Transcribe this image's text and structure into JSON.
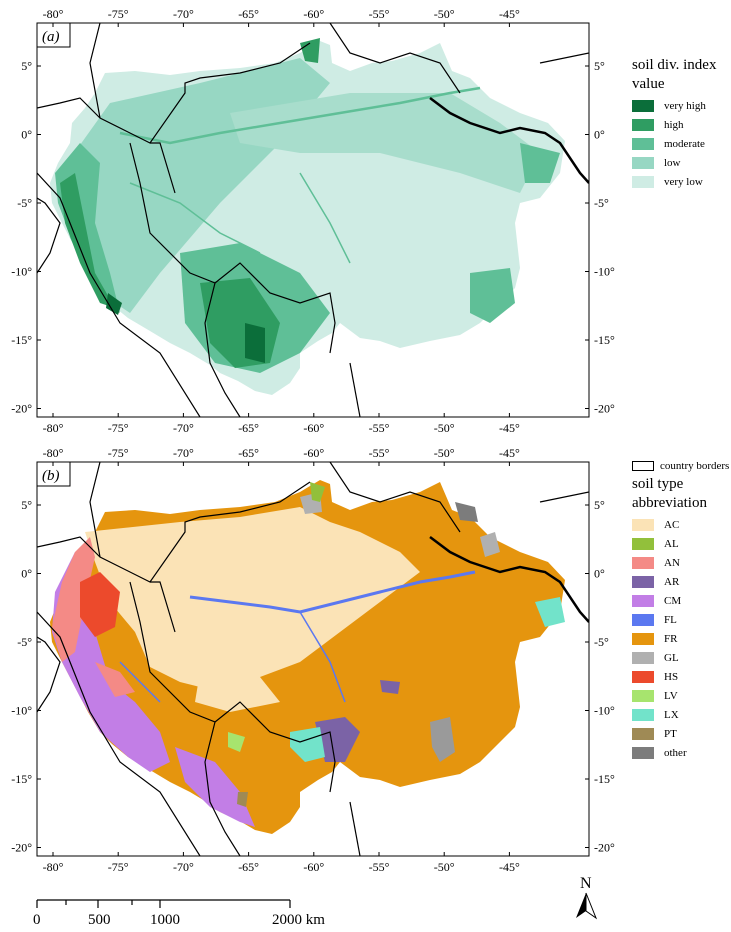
{
  "panel_a": {
    "label": "(a)",
    "legend_title_line1": "soil div. index",
    "legend_title_line2": "value",
    "legend_items": [
      {
        "label": "very high",
        "color": "#0b6e3a"
      },
      {
        "label": "high",
        "color": "#2f9d62"
      },
      {
        "label": "moderate",
        "color": "#5fbf97"
      },
      {
        "label": "low",
        "color": "#97d7c3"
      },
      {
        "label": "very low",
        "color": "#cfece4"
      }
    ]
  },
  "panel_b": {
    "label": "(b)",
    "borders_label": "country borders",
    "legend_title_line1": "soil type",
    "legend_title_line2": "abbreviation",
    "legend_items": [
      {
        "label": "AC",
        "color": "#fbe3b6"
      },
      {
        "label": "AL",
        "color": "#92c03b"
      },
      {
        "label": "AN",
        "color": "#f48a86"
      },
      {
        "label": "AR",
        "color": "#7b63a6"
      },
      {
        "label": "CM",
        "color": "#c27ee6"
      },
      {
        "label": "FL",
        "color": "#5b78f0"
      },
      {
        "label": "FR",
        "color": "#e5950e"
      },
      {
        "label": "GL",
        "color": "#b0b0b0"
      },
      {
        "label": "HS",
        "color": "#ec4a2c"
      },
      {
        "label": "LV",
        "color": "#a7e46e"
      },
      {
        "label": "LX",
        "color": "#72e3ca"
      },
      {
        "label": "PT",
        "color": "#9f8a55"
      },
      {
        "label": "other",
        "color": "#7c7c7c"
      }
    ]
  },
  "lon_ticks": [
    "-80°",
    "-75°",
    "-70°",
    "-65°",
    "-60°",
    "-55°",
    "-50°",
    "-45°"
  ],
  "lat_ticks": [
    "5°",
    "0°",
    "-5°",
    "-10°",
    "-15°",
    "-20°"
  ],
  "scale_bar": {
    "labels": [
      "0",
      "500",
      "1000",
      "2000 km"
    ]
  },
  "north_arrow": {
    "label": "N"
  }
}
